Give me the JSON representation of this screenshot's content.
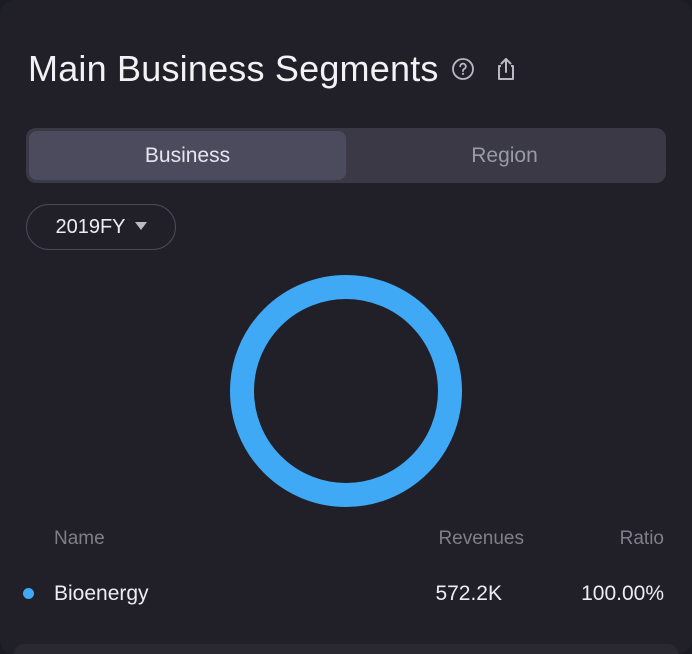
{
  "header": {
    "title": "Main Business Segments",
    "help_icon": "question-circle-icon",
    "share_icon": "share-icon"
  },
  "tabs": [
    {
      "label": "Business",
      "active": true
    },
    {
      "label": "Region",
      "active": false
    }
  ],
  "period_select": {
    "value": "2019FY",
    "icon": "caret-down-icon"
  },
  "table": {
    "columns": {
      "name": "Name",
      "revenues": "Revenues",
      "ratio": "Ratio"
    },
    "rows": [
      {
        "name": "Bioenergy",
        "revenues": "572.2K",
        "ratio": "100.00%",
        "color": "#3fa9f5"
      }
    ]
  },
  "chart_data": {
    "type": "pie",
    "categories": [
      "Bioenergy"
    ],
    "values": [
      100.0
    ],
    "colors": [
      "#3fa9f5"
    ]
  },
  "colors": {
    "accent": "#3fa9f5",
    "background": "#212029"
  }
}
